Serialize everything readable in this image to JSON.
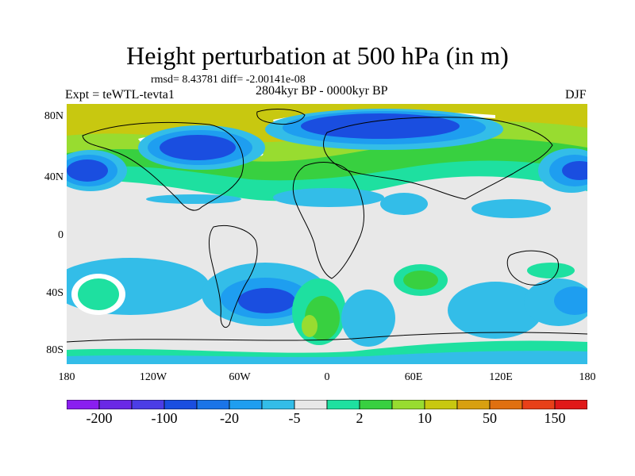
{
  "title": "Height perturbation at 500 hPa (in m)",
  "stats": "rmsd= 8.43781 diff= -2.00141e-08",
  "experiment": "Expt = teWTL-tevta1",
  "period": "2804kyr BP - 0000kyr BP",
  "season": "DJF",
  "lat_labels": [
    "80N",
    "40N",
    "0",
    "40S",
    "80S"
  ],
  "lon_labels": [
    "180",
    "120W",
    "60W",
    "0",
    "60E",
    "120E",
    "180"
  ],
  "colorbar": {
    "labels": [
      "-200",
      "-100",
      "-20",
      "-5",
      "2",
      "10",
      "50",
      "150"
    ],
    "colors": [
      "#8a1ef0",
      "#6a28e6",
      "#4b3de6",
      "#1a4ee0",
      "#1a74e8",
      "#1e9ef0",
      "#33bde8",
      "#e8e8e8",
      "#1ee0a0",
      "#38d040",
      "#98dc30",
      "#c8c810",
      "#d8a010",
      "#e07010",
      "#e84018",
      "#e01818"
    ]
  },
  "palette": {
    "blue_dark": "#1a4ee0",
    "blue_mid": "#1e9ef0",
    "cyan": "#33bde8",
    "neutral": "#e8e8e8",
    "teal": "#1ee0a0",
    "green": "#38d040",
    "lime": "#98dc30",
    "olive": "#c8c810",
    "white_band": "#ffffff"
  }
}
